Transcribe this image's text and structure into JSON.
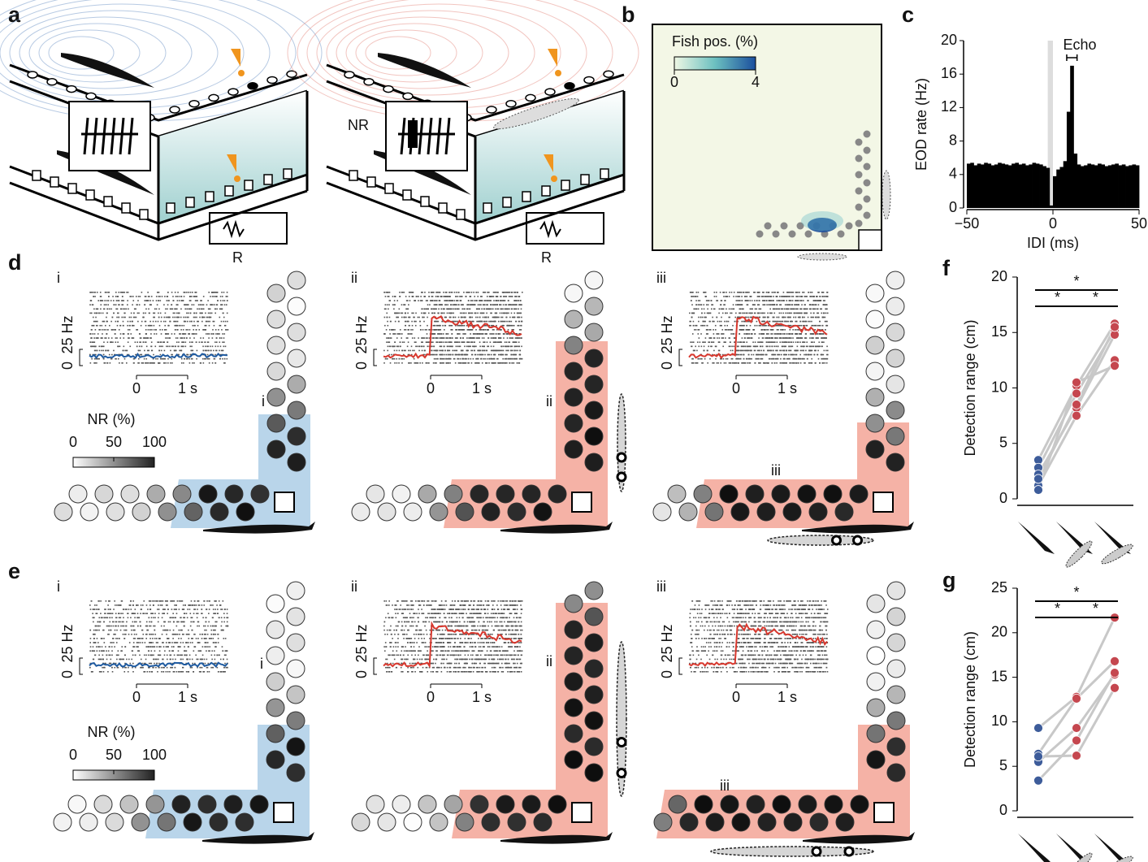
{
  "panel_labels": [
    "a",
    "b",
    "c",
    "d",
    "e",
    "f",
    "g"
  ],
  "panel_a": {
    "labels": [
      "NR",
      "R",
      "R"
    ]
  },
  "panel_b": {
    "colorbar_label": "Fish pos. (%)",
    "colorbar_ticks": [
      0,
      4
    ]
  },
  "chart_data": [
    {
      "type": "histogram",
      "xlabel": "IDI (ms)",
      "ylabel": "EOD rate (Hz)",
      "annotation": "Echo",
      "color": "#000000",
      "bins": [
        -50,
        -48,
        -46,
        -44,
        -42,
        -40,
        -38,
        -36,
        -34,
        -32,
        -30,
        -28,
        -26,
        -24,
        -22,
        -20,
        -18,
        -16,
        -14,
        -12,
        -10,
        -8,
        -6,
        -4,
        -2,
        0,
        2,
        4,
        6,
        8,
        10,
        12,
        14,
        16,
        18,
        20,
        22,
        24,
        26,
        28,
        30,
        32,
        34,
        36,
        38,
        40,
        42,
        44,
        46,
        48,
        50
      ],
      "counts": [
        5.3,
        5.4,
        5.1,
        5.3,
        5.2,
        5.4,
        5.3,
        5.1,
        5.2,
        5.4,
        5.3,
        5.2,
        5.1,
        5.3,
        5.4,
        5.2,
        5.3,
        5.1,
        5.2,
        5.4,
        5.3,
        5.2,
        5.0,
        4.8,
        0.3,
        3.8,
        4.6,
        4.9,
        5.6,
        11.5,
        17,
        6.5,
        5.2,
        5.0,
        5.1,
        5.3,
        5.2,
        5.1,
        5.3,
        5.2,
        5.0,
        5.1,
        5.2,
        5.3,
        5.1,
        5.2,
        5.0,
        5.1,
        5.2,
        5.1
      ],
      "xlim": [
        -50,
        50
      ],
      "xticks": [
        {
          "value": -50,
          "label": "−50"
        },
        0,
        50
      ],
      "ylim": [
        0,
        20
      ],
      "yticks": [
        0,
        4,
        8,
        12,
        16,
        20
      ]
    },
    {
      "type": "paired-dot",
      "ylabel": "Detection range (cm)",
      "categories": [
        null,
        null,
        null
      ],
      "category_colors": [
        "#3d5c9a",
        "#c5474f",
        "#c5474f"
      ],
      "line_color": "#c8c8c8",
      "series": [
        {
          "values": [
            3.5,
            10.2,
            15.8
          ]
        },
        {
          "values": [
            2.8,
            9.5,
            15.2
          ]
        },
        {
          "values": [
            2.2,
            8.2,
            14.8
          ]
        },
        {
          "values": [
            1.2,
            7.5,
            12.5
          ]
        },
        {
          "values": [
            0.8,
            10.5,
            12.0
          ]
        },
        {
          "values": [
            1.8,
            8.5,
            15.5
          ]
        }
      ],
      "ylim": [
        0,
        20
      ],
      "yticks": [
        0,
        5,
        10,
        15,
        20
      ],
      "significance": [
        "*",
        "*",
        "*"
      ]
    },
    {
      "type": "paired-dot",
      "ylabel": "Detection range (cm)",
      "categories": [
        null,
        null,
        null
      ],
      "category_colors": [
        "#3d5c9a",
        "#c5474f",
        "#c5474f"
      ],
      "line_color": "#c8c8c8",
      "series": [
        {
          "values": [
            9.3,
            12.8,
            21.7
          ]
        },
        {
          "values": [
            6.4,
            12.6,
            16.8
          ]
        },
        {
          "values": [
            5.5,
            9.3,
            15.3
          ]
        },
        {
          "values": [
            3.4,
            7.9,
            15.5
          ]
        },
        {
          "values": [
            6.1,
            6.2,
            13.8
          ]
        }
      ],
      "ylim": [
        0,
        25
      ],
      "yticks": [
        0,
        5,
        10,
        15,
        20,
        25
      ],
      "significance": [
        "*",
        "*",
        "*"
      ]
    }
  ],
  "panel_d": {
    "insets": [
      {
        "label": "i",
        "scale_bar": [
          0,
          {
            "value": 25,
            "label": "25 Hz"
          }
        ],
        "time_ticks": [
          0,
          {
            "value": 1,
            "label": "1 s"
          }
        ]
      },
      {
        "label": "ii",
        "scale_bar": [
          0,
          {
            "value": 25,
            "label": "25 Hz"
          }
        ],
        "time_ticks": [
          0,
          {
            "value": 1,
            "label": "1 s"
          }
        ]
      },
      {
        "label": "iii",
        "scale_bar": [
          0,
          {
            "value": 25,
            "label": "25 Hz"
          }
        ],
        "time_ticks": [
          0,
          {
            "value": 1,
            "label": "1 s"
          }
        ]
      }
    ],
    "layout_labels": [
      "i",
      "ii",
      "iii"
    ],
    "nr_label": "NR (%)",
    "nr_ticks": [
      0,
      50,
      100
    ]
  },
  "panel_e": {
    "insets": [
      {
        "label": "i",
        "scale_bar": [
          0,
          {
            "value": 25,
            "label": "25 Hz"
          }
        ],
        "time_ticks": [
          0,
          {
            "value": 1,
            "label": "1 s"
          }
        ]
      },
      {
        "label": "ii",
        "scale_bar": [
          0,
          {
            "value": 25,
            "label": "25 Hz"
          }
        ],
        "time_ticks": [
          0,
          {
            "value": 1,
            "label": "1 s"
          }
        ]
      },
      {
        "label": "iii",
        "scale_bar": [
          0,
          {
            "value": 25,
            "label": "25 Hz"
          }
        ],
        "time_ticks": [
          0,
          {
            "value": 1,
            "label": "1 s"
          }
        ]
      }
    ],
    "layout_labels": [
      "i",
      "ii",
      "iii"
    ],
    "nr_label": "NR (%)",
    "nr_ticks": [
      0,
      50,
      100
    ]
  }
}
